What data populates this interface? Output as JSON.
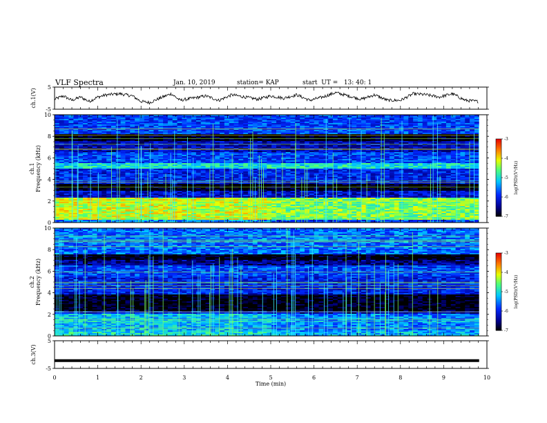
{
  "header": {
    "title": "VLF Spectra",
    "date": "Jan. 10, 2019",
    "station": "station= KAP",
    "start": "start  UT =   13: 40: 1"
  },
  "colorbar": {
    "label": "log(PSD)(V²/Hz)",
    "ticks": [
      "-3",
      "-4",
      "-5",
      "-6",
      "-7"
    ]
  },
  "chart_data": [
    {
      "type": "line",
      "ylabel": "ch.1(V)",
      "yticks": [
        "5",
        "-5"
      ],
      "ylim": [
        -5,
        5
      ],
      "x_range": [
        0,
        9.82
      ],
      "series": [
        {
          "x": [
            0,
            0.2,
            0.4,
            0.6,
            0.8,
            1.0,
            1.2,
            1.5,
            1.8,
            2.0,
            2.2,
            2.5,
            2.7,
            2.9,
            3.2,
            3.5,
            3.8,
            4.1,
            4.4,
            4.7,
            5.0,
            5.3,
            5.6,
            5.9,
            6.2,
            6.5,
            6.8,
            7.1,
            7.4,
            7.7,
            8.0,
            8.3,
            8.6,
            8.9,
            9.2,
            9.5,
            9.8
          ],
          "values": [
            -0.5,
            1.0,
            -1.0,
            0.5,
            -1.5,
            0.5,
            1.5,
            2.0,
            1.0,
            -1.5,
            -2.0,
            0.5,
            2.0,
            -1.0,
            0.0,
            1.0,
            -1.0,
            1.5,
            0.5,
            -0.5,
            1.0,
            0.0,
            1.5,
            -1.0,
            0.5,
            2.5,
            1.0,
            -0.5,
            1.5,
            -1.0,
            -1.0,
            2.0,
            1.5,
            0.5,
            2.0,
            -1.0,
            -1.5
          ]
        }
      ]
    },
    {
      "type": "heatmap",
      "ylabel": "ch.1\nFrequency (kHz)",
      "yticks": [
        "0",
        "2",
        "4",
        "6",
        "8",
        "10"
      ],
      "ylim": [
        0,
        10
      ],
      "x_range": [
        0,
        9.82
      ],
      "color_range": [
        -7,
        -3
      ],
      "bands": [
        {
          "f": [
            0.0,
            0.3
          ],
          "level": -5.5
        },
        {
          "f": [
            0.3,
            2.3
          ],
          "level": -4.2
        },
        {
          "f": [
            2.3,
            2.9
          ],
          "level": -6.2
        },
        {
          "f": [
            2.9,
            3.6
          ],
          "level": -7.0
        },
        {
          "f": [
            3.6,
            5.0
          ],
          "level": -6.0
        },
        {
          "f": [
            5.0,
            5.5
          ],
          "level": -5.0
        },
        {
          "f": [
            5.5,
            6.5
          ],
          "level": -5.8
        },
        {
          "f": [
            6.5,
            7.5
          ],
          "level": -6.3
        },
        {
          "f": [
            7.5,
            8.2
          ],
          "level": -7.0
        },
        {
          "f": [
            8.2,
            10.0
          ],
          "level": -5.8
        }
      ]
    },
    {
      "type": "heatmap",
      "ylabel": "ch.2\nFrequency (kHz)",
      "yticks": [
        "0",
        "2",
        "4",
        "6",
        "8",
        "10"
      ],
      "ylim": [
        0,
        10
      ],
      "x_range": [
        0,
        9.82
      ],
      "color_range": [
        -7,
        -3
      ],
      "bands": [
        {
          "f": [
            0.0,
            0.4
          ],
          "level": -5.0
        },
        {
          "f": [
            0.4,
            2.0
          ],
          "level": -5.2
        },
        {
          "f": [
            2.0,
            2.3
          ],
          "level": -6.0
        },
        {
          "f": [
            2.3,
            3.8
          ],
          "level": -7.0
        },
        {
          "f": [
            3.8,
            5.5
          ],
          "level": -6.0
        },
        {
          "f": [
            5.5,
            6.5
          ],
          "level": -5.8
        },
        {
          "f": [
            6.5,
            7.0
          ],
          "level": -6.5
        },
        {
          "f": [
            7.0,
            7.6
          ],
          "level": -7.0
        },
        {
          "f": [
            7.6,
            10.0
          ],
          "level": -5.6
        }
      ]
    },
    {
      "type": "line",
      "ylabel": "ch.3(V)",
      "yticks": [
        "5",
        "-5"
      ],
      "ylim": [
        -5,
        5
      ],
      "x_range": [
        0,
        9.82
      ],
      "series": [
        {
          "x": [
            0,
            9.82
          ],
          "values": [
            -2.2,
            -2.2
          ]
        }
      ]
    }
  ],
  "xaxis": {
    "label": "Time (min)",
    "ticks": [
      "0",
      "1",
      "2",
      "3",
      "4",
      "5",
      "6",
      "7",
      "8",
      "9",
      "10"
    ],
    "range": [
      0,
      10
    ]
  }
}
